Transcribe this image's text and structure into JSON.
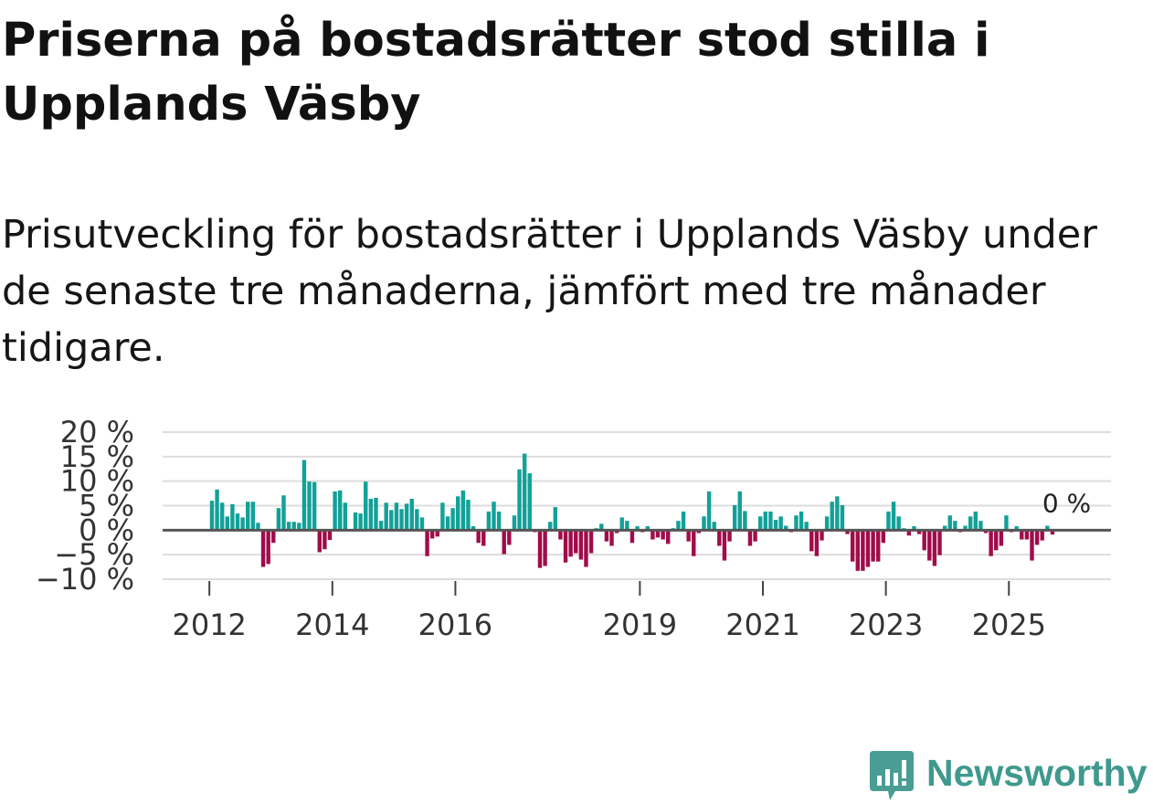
{
  "chart_data": {
    "type": "bar",
    "title": "Priserna på bostadsrätter stod stilla i Upplands Väsby",
    "subtitle": "Prisutveckling för bostadsrätter i Upplands Väsby under de senaste tre månaderna, jämfört med tre månader tidigare.",
    "x_start": {
      "year": 2012,
      "month": 1
    },
    "values": [
      6.0,
      8.3,
      5.6,
      2.8,
      5.3,
      3.4,
      2.6,
      5.8,
      5.8,
      1.5,
      -7.5,
      -6.9,
      -2.6,
      4.5,
      7.1,
      1.7,
      1.7,
      1.5,
      14.3,
      9.9,
      9.8,
      -4.5,
      -3.9,
      -2.0,
      7.9,
      8.1,
      5.6,
      0.2,
      3.6,
      3.4,
      9.9,
      6.4,
      6.6,
      1.9,
      5.6,
      4.1,
      5.6,
      4.3,
      5.4,
      6.4,
      4.3,
      2.6,
      -5.3,
      -1.7,
      -1.3,
      5.6,
      2.8,
      4.5,
      6.9,
      8.1,
      6.2,
      0.8,
      -2.6,
      -3.2,
      3.8,
      5.8,
      3.8,
      -4.9,
      -3.0,
      3.0,
      12.4,
      15.6,
      11.6,
      -0.4,
      -7.7,
      -7.3,
      1.7,
      4.7,
      -1.9,
      -6.6,
      -5.4,
      -4.7,
      -6.0,
      -7.5,
      -4.7,
      0.4,
      1.3,
      -2.3,
      -3.2,
      -0.6,
      2.6,
      1.9,
      -2.6,
      0.8,
      -0.4,
      0.8,
      -1.9,
      -1.5,
      -1.9,
      -2.8,
      0.4,
      1.9,
      3.8,
      -2.3,
      -5.3,
      -0.6,
      2.8,
      7.9,
      1.7,
      -3.2,
      -6.2,
      -2.3,
      5.1,
      7.9,
      3.9,
      -3.2,
      -2.3,
      2.8,
      3.8,
      3.8,
      2.1,
      2.8,
      0.9,
      -0.4,
      3.0,
      3.8,
      1.7,
      -4.3,
      -5.3,
      -2.1,
      2.8,
      5.8,
      6.9,
      5.1,
      -0.8,
      -6.4,
      -8.3,
      -8.3,
      -7.5,
      -6.4,
      -6.4,
      -2.6,
      3.8,
      5.8,
      2.8,
      0.4,
      -1.1,
      0.8,
      -0.8,
      -4.1,
      -6.2,
      -7.3,
      -5.1,
      0.9,
      3.0,
      1.9,
      -0.4,
      0.9,
      2.8,
      3.8,
      1.9,
      -0.6,
      -5.3,
      -4.1,
      -3.2,
      3.0,
      -0.4,
      0.8,
      -1.9,
      -1.9,
      -6.2,
      -3.0,
      -2.1,
      0.9,
      -0.9,
      0.0
    ],
    "xlim": [
      2011.24,
      2026.66
    ],
    "ylim": [
      -10,
      20
    ],
    "xticks": [
      {
        "value": 2012,
        "label": "2012"
      },
      {
        "value": 2014,
        "label": "2014"
      },
      {
        "value": 2016,
        "label": "2016"
      },
      {
        "value": 2019,
        "label": "2019"
      },
      {
        "value": 2021,
        "label": "2021"
      },
      {
        "value": 2023,
        "label": "2023"
      },
      {
        "value": 2025,
        "label": "2025"
      }
    ],
    "yticks": [
      {
        "value": 20,
        "label": "20 %"
      },
      {
        "value": 15,
        "label": "15 %"
      },
      {
        "value": 10,
        "label": "10 %"
      },
      {
        "value": 5,
        "label": "5 %"
      },
      {
        "value": 0,
        "label": "0 %"
      },
      {
        "value": -5,
        "label": "−5 %"
      },
      {
        "value": -10,
        "label": "−10 %"
      }
    ],
    "last_value_label": "0 %",
    "grid": true,
    "colors": {
      "positive": "#12a198",
      "negative": "#a00c4a",
      "grid": "#dddddd",
      "zero_line": "#555555",
      "axis_text": "#333333"
    }
  },
  "logo": {
    "brand": "Newsworthy",
    "color": "#3f998d",
    "icon_color": "#4a9d94",
    "icon": "newsworthy-chat-chart-icon"
  }
}
